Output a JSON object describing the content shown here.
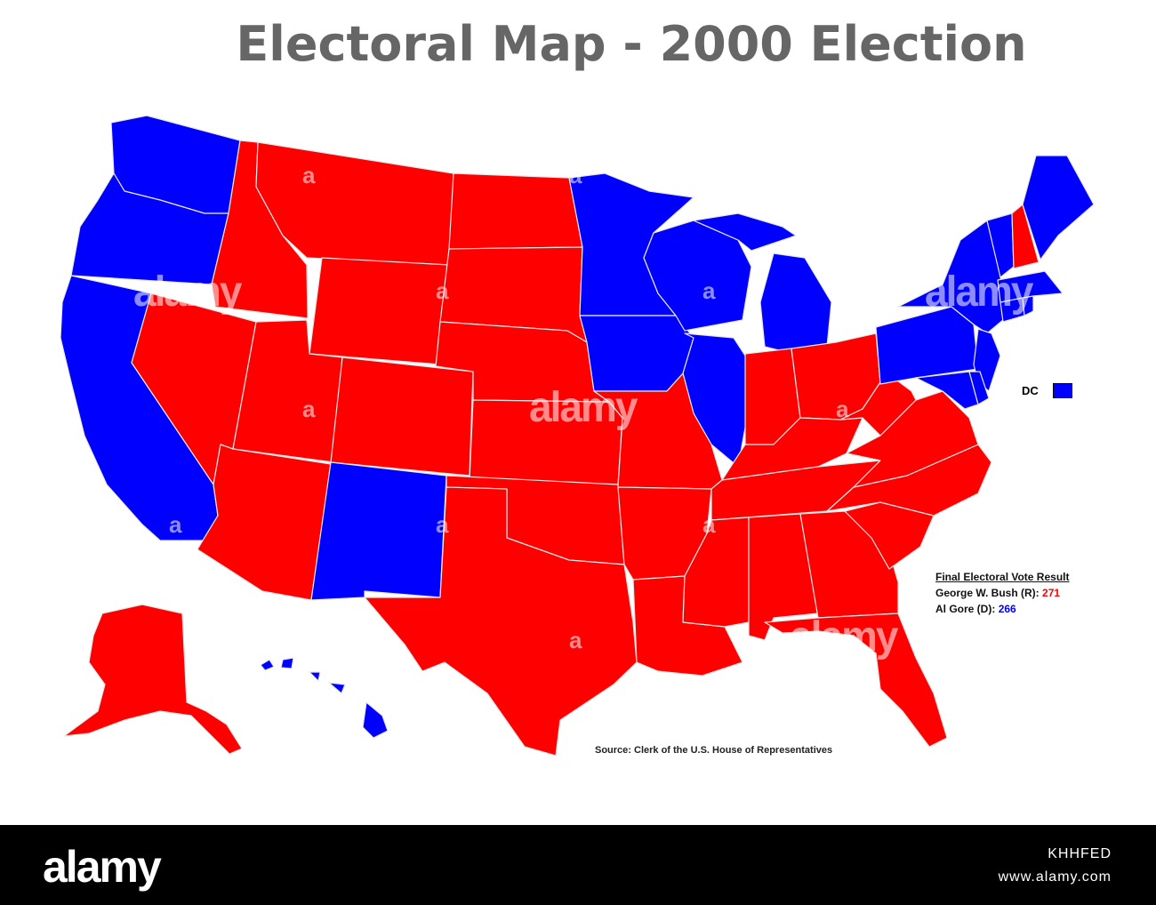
{
  "title": "Electoral Map - 2000 Election",
  "colors": {
    "republican": "#ff0000",
    "democrat": "#0000ff",
    "background": "#ffffff",
    "footer": "#000000"
  },
  "legend": {
    "dc_label": "DC",
    "dc_color": "democrat"
  },
  "result": {
    "heading": "Final Electoral Vote Result",
    "bush_label": "George W. Bush (R):",
    "bush_votes": "271",
    "gore_label": "Al Gore (D):",
    "gore_votes": "266"
  },
  "source": "Source: Clerk of the U.S. House of Representatives",
  "watermark": {
    "word": "alamy",
    "letter": "a"
  },
  "footer": {
    "logo": "alamy",
    "image_id": "KHHFED",
    "url": "www.alamy.com"
  }
}
